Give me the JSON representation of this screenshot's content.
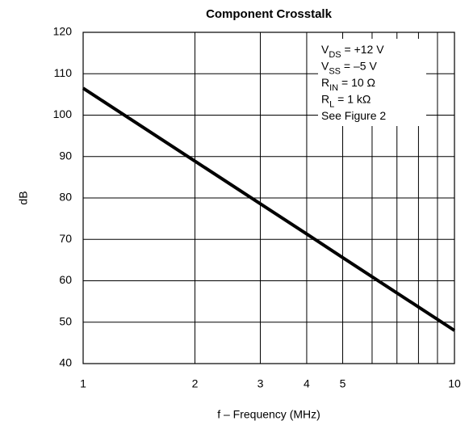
{
  "chart_data": {
    "type": "line",
    "title": "Component Crosstalk",
    "x_label": "f – Frequency (MHz)",
    "y_label": "dB",
    "x": [
      1,
      2,
      3,
      4,
      5,
      10
    ],
    "series": [
      {
        "name": "Crosstalk",
        "color": "#000000",
        "values": [
          106.5,
          88.9,
          78.6,
          71.3,
          65.6,
          48
        ]
      }
    ],
    "xlim": [
      1,
      10
    ],
    "xticks": [
      1,
      2,
      3,
      4,
      5,
      10
    ],
    "xticks_minor": [
      6,
      7,
      8,
      9
    ],
    "xscale": "log",
    "ylim": [
      40,
      120
    ],
    "yticks": [
      40,
      50,
      60,
      70,
      80,
      90,
      100,
      110,
      120
    ],
    "grid": true,
    "annotations": [
      {
        "main": "V",
        "sub": "DS",
        "tail": " = +12 V"
      },
      {
        "main": "V",
        "sub": "SS",
        "tail": " = –5 V"
      },
      {
        "main": "R",
        "sub": "IN",
        "tail": " = 10 Ω"
      },
      {
        "main": "R",
        "sub": "L",
        "tail": " = 1 kΩ"
      },
      {
        "main": "See Figure  2"
      }
    ]
  }
}
